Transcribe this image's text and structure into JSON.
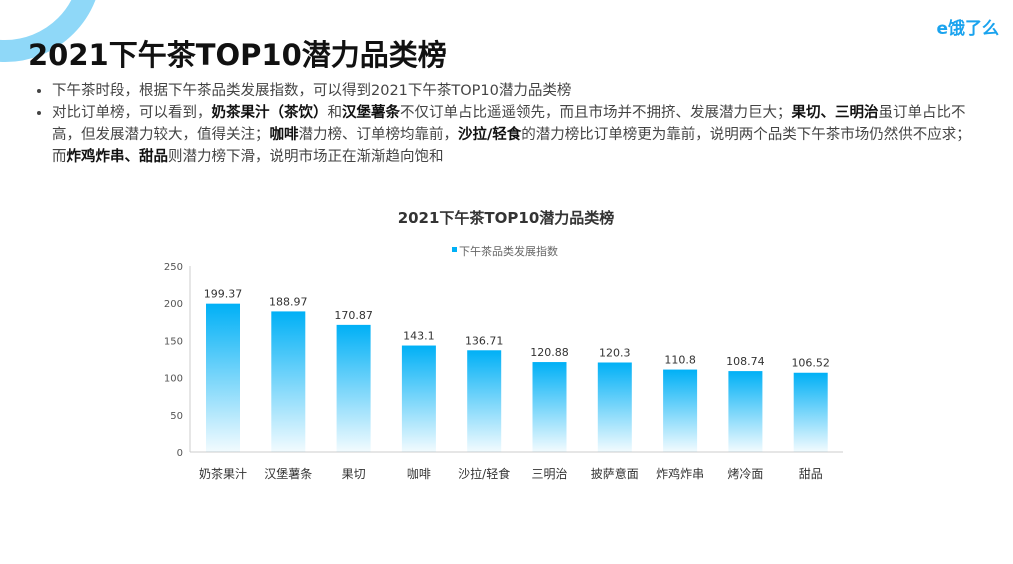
{
  "logo": "e饿了么",
  "title": "2021下午茶TOP10潜力品类榜",
  "bullets": [
    [
      {
        "t": "下午茶时段，根据下午茶品类发展指数，可以得到2021下午茶TOP10潜力品类榜",
        "b": false
      }
    ],
    [
      {
        "t": "对比订单榜，可以看到，",
        "b": false
      },
      {
        "t": "奶茶果汁（茶饮）",
        "b": true
      },
      {
        "t": "和",
        "b": false
      },
      {
        "t": "汉堡薯条",
        "b": true
      },
      {
        "t": "不仅订单占比遥遥领先，而且市场并不拥挤、发展潜力巨大；",
        "b": false
      },
      {
        "t": "果切、三明治",
        "b": true
      },
      {
        "t": "虽订单占比不高，但发展潜力较大，值得关注；",
        "b": false
      },
      {
        "t": "咖啡",
        "b": true
      },
      {
        "t": "潜力榜、订单榜均靠前，",
        "b": false
      },
      {
        "t": "沙拉/轻食",
        "b": true
      },
      {
        "t": "的潜力榜比订单榜更为靠前，说明两个品类下午茶市场仍然供不应求；而",
        "b": false
      },
      {
        "t": "炸鸡炸串、甜品",
        "b": true
      },
      {
        "t": "则潜力榜下滑，说明市场正在渐渐趋向饱和",
        "b": false
      }
    ]
  ],
  "chart_data": {
    "type": "bar",
    "title": "2021下午茶TOP10潜力品类榜",
    "legend": "下午茶品类发展指数",
    "legend_position": "top",
    "categories": [
      "奶茶果汁",
      "汉堡薯条",
      "果切",
      "咖啡",
      "沙拉/轻食",
      "三明治",
      "披萨意面",
      "炸鸡炸串",
      "烤冷面",
      "甜品"
    ],
    "series": [
      {
        "name": "下午茶品类发展指数",
        "values": [
          199.37,
          188.97,
          170.87,
          143.1,
          136.71,
          120.88,
          120.3,
          110.8,
          108.74,
          106.52
        ]
      }
    ],
    "value_labels": [
      "199.37",
      "188.97",
      "170.87",
      "143.1",
      "136.71",
      "120.88",
      "120.3",
      "110.8",
      "108.74",
      "106.52"
    ],
    "ylim": [
      0,
      250
    ],
    "yticks": [
      "0",
      "50",
      "100",
      "150",
      "200",
      "250"
    ],
    "grid": false,
    "color": "#00b0f6"
  }
}
